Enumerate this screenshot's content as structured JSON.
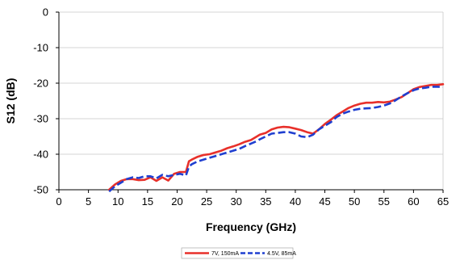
{
  "chart_data": {
    "type": "line",
    "xlabel": "Frequency (GHz)",
    "ylabel": "S12 (dB)",
    "xlim": [
      0,
      65
    ],
    "ylim": [
      -50,
      0
    ],
    "xticks": [
      0,
      5,
      10,
      15,
      20,
      25,
      30,
      35,
      40,
      45,
      50,
      55,
      60,
      65
    ],
    "yticks": [
      0,
      -10,
      -20,
      -30,
      -40,
      -50
    ],
    "grid": "horizontal",
    "legend": "bottom-center",
    "series": [
      {
        "name": "7V, 150mA",
        "color": "#e8302a",
        "style": "solid",
        "x": [
          8.5,
          9.5,
          10.5,
          11.5,
          12.5,
          13.5,
          14.5,
          15.5,
          16.5,
          17.5,
          18.5,
          19.5,
          20.5,
          21.5,
          22.0,
          22.5,
          23.5,
          24.5,
          25.5,
          26.5,
          27.5,
          28.5,
          29.5,
          30.5,
          31.5,
          32.5,
          33.5,
          34.0,
          35.0,
          36.0,
          37.0,
          38.0,
          39.0,
          40.0,
          41.0,
          42.0,
          43.0,
          44.0,
          45.0,
          46.0,
          47.0,
          48.0,
          49.0,
          50.0,
          51.0,
          52.0,
          53.0,
          54.0,
          55.0,
          56.0,
          57.0,
          58.0,
          59.0,
          60.0,
          61.0,
          62.0,
          63.0,
          64.0,
          65.0
        ],
        "y": [
          -50,
          -48.5,
          -47.5,
          -47,
          -47,
          -47.3,
          -47.2,
          -46.5,
          -47.5,
          -46.5,
          -47.4,
          -45.5,
          -45,
          -45,
          -42,
          -41.5,
          -40.7,
          -40.2,
          -40,
          -39.5,
          -39,
          -38.3,
          -37.8,
          -37.2,
          -36.5,
          -36,
          -35,
          -34.5,
          -34,
          -33,
          -32.5,
          -32.3,
          -32.4,
          -32.8,
          -33.2,
          -33.8,
          -34.2,
          -33,
          -31.5,
          -30.3,
          -29,
          -28,
          -27,
          -26.3,
          -25.8,
          -25.5,
          -25.5,
          -25.3,
          -25.4,
          -25.2,
          -24.6,
          -23.9,
          -22.8,
          -21.7,
          -21.1,
          -20.8,
          -20.5,
          -20.5,
          -20.3
        ]
      },
      {
        "name": "4.5V, 85mA",
        "color": "#1f3fd0",
        "style": "dashed",
        "x": [
          8.5,
          9.5,
          10.5,
          11.5,
          12.5,
          13.5,
          14.5,
          15.5,
          16.5,
          17.5,
          18.5,
          19.5,
          20.5,
          21.5,
          22.0,
          22.5,
          23.5,
          24.5,
          25.5,
          26.5,
          27.5,
          28.5,
          29.5,
          30.5,
          31.5,
          32.5,
          33.5,
          34.0,
          35.0,
          36.0,
          37.0,
          38.0,
          39.0,
          40.0,
          41.0,
          42.0,
          43.0,
          44.0,
          45.0,
          46.0,
          47.0,
          48.0,
          49.0,
          50.0,
          51.0,
          52.0,
          53.0,
          54.0,
          55.0,
          56.0,
          57.0,
          58.0,
          59.0,
          60.0,
          61.0,
          62.0,
          63.0,
          64.0,
          65.0
        ],
        "y": [
          -50.5,
          -49,
          -48,
          -47,
          -46.5,
          -46.7,
          -46.2,
          -46.2,
          -46.8,
          -45.8,
          -46.2,
          -45.8,
          -45.5,
          -46,
          -43.5,
          -42.8,
          -42,
          -41.5,
          -41,
          -40.5,
          -40,
          -39.5,
          -39,
          -38.5,
          -37.7,
          -37,
          -36.3,
          -35.8,
          -35,
          -34.2,
          -34,
          -33.8,
          -33.8,
          -34.2,
          -35,
          -35.2,
          -34.5,
          -33,
          -32,
          -31,
          -29.5,
          -28.6,
          -28,
          -27.5,
          -27.2,
          -27.1,
          -27,
          -26.7,
          -26.3,
          -25.7,
          -24.8,
          -23.7,
          -22.8,
          -22,
          -21.5,
          -21.3,
          -21,
          -21,
          -21.1
        ]
      }
    ]
  }
}
